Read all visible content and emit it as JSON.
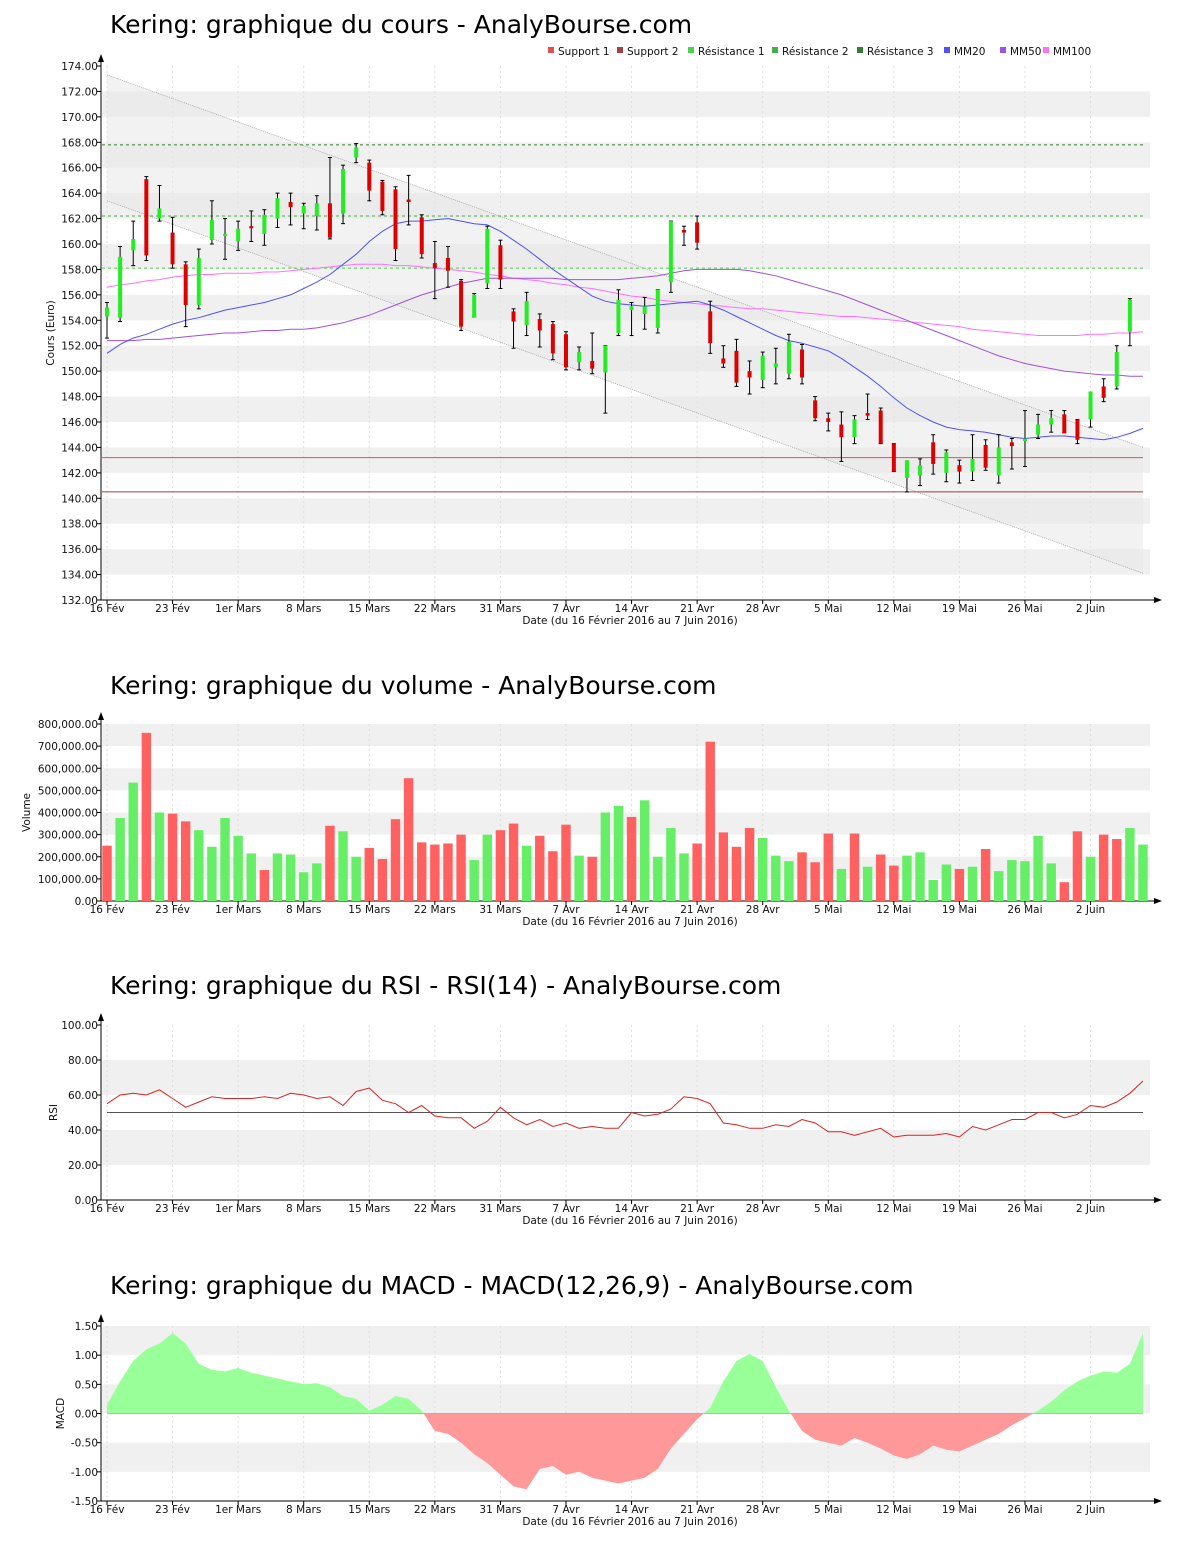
{
  "charts": {
    "price": {
      "title": "Kering: graphique du cours - AnalyBourse.com",
      "ylabel": "Cours (Euro)"
    },
    "volume": {
      "title": "Kering: graphique du volume - AnalyBourse.com",
      "ylabel": "Volume"
    },
    "rsi": {
      "title": "Kering: graphique du RSI - RSI(14) - AnalyBourse.com",
      "ylabel": "RSI"
    },
    "macd": {
      "title": "Kering: graphique du MACD - MACD(12,26,9) - AnalyBourse.com",
      "ylabel": "MACD"
    }
  },
  "xaxis": {
    "label": "Date (du 16 Février 2016 au 7 Juin 2016)",
    "ticks": [
      {
        "label": "16 Fév",
        "i": 0
      },
      {
        "label": "23 Fév",
        "i": 5
      },
      {
        "label": "1er Mars",
        "i": 10
      },
      {
        "label": "8 Mars",
        "i": 15
      },
      {
        "label": "15 Mars",
        "i": 20
      },
      {
        "label": "22 Mars",
        "i": 25
      },
      {
        "label": "31 Mars",
        "i": 30
      },
      {
        "label": "7 Avr",
        "i": 35
      },
      {
        "label": "14 Avr",
        "i": 40
      },
      {
        "label": "21 Avr",
        "i": 45
      },
      {
        "label": "28 Avr",
        "i": 50
      },
      {
        "label": "5 Mai",
        "i": 55
      },
      {
        "label": "12 Mai",
        "i": 60
      },
      {
        "label": "19 Mai",
        "i": 65
      },
      {
        "label": "26 Mai",
        "i": 70
      },
      {
        "label": "2 Juin",
        "i": 75
      }
    ]
  },
  "legend": [
    {
      "label": "Support 1",
      "color": "#e05050"
    },
    {
      "label": "Support 2",
      "color": "#a04040"
    },
    {
      "label": "Résistance 1",
      "color": "#50d050"
    },
    {
      "label": "Résistance 2",
      "color": "#40b040"
    },
    {
      "label": "Résistance 3",
      "color": "#308030"
    },
    {
      "label": "MM20",
      "color": "#5050ff"
    },
    {
      "label": "MM50",
      "color": "#a050e0"
    },
    {
      "label": "MM100",
      "color": "#ff70ff"
    }
  ],
  "colors": {
    "up": "#22ee22",
    "down": "#dd0000",
    "vol_up": "#66ee66",
    "vol_down": "#ff6060",
    "macd_pos": "#99ff99",
    "macd_neg": "#ff9999",
    "rsi": "#dd2222"
  },
  "chart_data": [
    {
      "type": "candlestick",
      "ylim": [
        132,
        174
      ],
      "yticks": [
        "132.00",
        "134.00",
        "136.00",
        "138.00",
        "140.00",
        "142.00",
        "144.00",
        "146.00",
        "148.00",
        "150.00",
        "152.00",
        "154.00",
        "156.00",
        "158.00",
        "160.00",
        "162.00",
        "164.00",
        "166.00",
        "168.00",
        "170.00",
        "172.00",
        "174.00"
      ],
      "support": [
        143.2,
        140.5
      ],
      "resistance": [
        158.1,
        162.2,
        167.8
      ],
      "ohlc": [
        [
          154.3,
          155.4,
          152.6,
          155.0
        ],
        [
          154.2,
          159.8,
          153.9,
          159.0
        ],
        [
          159.5,
          161.8,
          158.3,
          160.4
        ],
        [
          165.1,
          165.3,
          158.7,
          159.1
        ],
        [
          162.0,
          164.6,
          161.8,
          162.8
        ],
        [
          160.9,
          162.1,
          158.1,
          158.4
        ],
        [
          158.4,
          158.6,
          153.5,
          155.2
        ],
        [
          155.2,
          159.6,
          154.9,
          158.9
        ],
        [
          160.3,
          163.4,
          160.0,
          161.9
        ],
        [
          160.7,
          162.0,
          158.8,
          160.8
        ],
        [
          160.2,
          161.8,
          159.5,
          161.2
        ],
        [
          161.4,
          162.6,
          160.2,
          161.3
        ],
        [
          160.8,
          162.7,
          159.9,
          162.3
        ],
        [
          162.0,
          164.0,
          161.3,
          163.6
        ],
        [
          163.3,
          164.0,
          161.5,
          162.9
        ],
        [
          162.4,
          163.2,
          161.2,
          163.0
        ],
        [
          162.2,
          163.8,
          161.1,
          163.2
        ],
        [
          163.2,
          166.8,
          160.4,
          160.5
        ],
        [
          162.4,
          166.2,
          161.6,
          165.9
        ],
        [
          166.8,
          167.9,
          166.4,
          167.6
        ],
        [
          166.4,
          166.6,
          163.4,
          164.2
        ],
        [
          164.9,
          165.0,
          162.3,
          162.6
        ],
        [
          164.3,
          164.5,
          158.7,
          159.6
        ],
        [
          163.5,
          165.4,
          161.5,
          163.3
        ],
        [
          162.1,
          162.3,
          158.9,
          159.2
        ],
        [
          158.5,
          160.2,
          155.7,
          158.1
        ],
        [
          158.9,
          159.8,
          156.6,
          157.9
        ],
        [
          157.1,
          157.2,
          153.2,
          153.5
        ],
        [
          154.2,
          156.1,
          154.3,
          156.0
        ],
        [
          156.9,
          161.4,
          156.5,
          161.2
        ],
        [
          159.9,
          160.3,
          156.5,
          157.2
        ],
        [
          154.7,
          154.9,
          151.8,
          153.9
        ],
        [
          153.6,
          156.2,
          152.8,
          155.5
        ],
        [
          154.1,
          154.5,
          151.9,
          153.2
        ],
        [
          153.7,
          153.9,
          150.9,
          151.4
        ],
        [
          152.9,
          153.1,
          150.1,
          150.3
        ],
        [
          150.7,
          151.9,
          150.1,
          151.5
        ],
        [
          150.8,
          153.0,
          149.8,
          150.2
        ],
        [
          149.9,
          152.0,
          146.7,
          152.0
        ],
        [
          153.0,
          156.4,
          152.8,
          155.6
        ],
        [
          154.8,
          155.4,
          152.8,
          155.1
        ],
        [
          154.5,
          155.8,
          153.3,
          155.1
        ],
        [
          153.4,
          156.4,
          153.0,
          156.4
        ],
        [
          157.0,
          161.8,
          156.2,
          161.8
        ],
        [
          161.1,
          161.4,
          159.9,
          160.9
        ],
        [
          161.7,
          162.2,
          159.6,
          160.1
        ],
        [
          154.7,
          155.5,
          151.4,
          152.2
        ],
        [
          151.0,
          152.0,
          150.3,
          150.6
        ],
        [
          151.6,
          152.5,
          148.8,
          149.1
        ],
        [
          150.0,
          150.8,
          148.2,
          149.5
        ],
        [
          149.3,
          151.5,
          148.7,
          151.2
        ],
        [
          150.3,
          151.8,
          149.0,
          150.6
        ],
        [
          149.8,
          152.9,
          149.4,
          152.3
        ],
        [
          151.7,
          152.1,
          149.0,
          149.5
        ],
        [
          147.7,
          148.0,
          146.1,
          146.3
        ],
        [
          146.3,
          146.7,
          145.3,
          146.0
        ],
        [
          145.8,
          146.8,
          142.9,
          144.8
        ],
        [
          144.8,
          146.5,
          144.3,
          146.2
        ],
        [
          146.7,
          148.2,
          146.2,
          146.5
        ],
        [
          146.9,
          147.1,
          144.3,
          144.3
        ],
        [
          144.3,
          144.3,
          142.1,
          142.1
        ],
        [
          141.6,
          142.6,
          140.5,
          143.0
        ],
        [
          141.8,
          143.1,
          141.0,
          142.6
        ],
        [
          144.4,
          145.0,
          141.9,
          142.7
        ],
        [
          142.0,
          143.8,
          141.3,
          143.6
        ],
        [
          142.6,
          143.0,
          141.2,
          142.1
        ],
        [
          142.1,
          145.0,
          141.4,
          143.1
        ],
        [
          144.2,
          144.6,
          142.2,
          142.4
        ],
        [
          141.8,
          145.0,
          141.2,
          144.0
        ],
        [
          144.4,
          144.7,
          142.3,
          144.1
        ],
        [
          144.5,
          146.9,
          142.5,
          144.7
        ],
        [
          145.0,
          146.6,
          144.7,
          145.8
        ],
        [
          145.8,
          146.9,
          145.2,
          146.3
        ],
        [
          146.6,
          146.9,
          145.2,
          145.1
        ],
        [
          146.2,
          146.2,
          144.3,
          144.6
        ],
        [
          146.2,
          148.3,
          145.6,
          148.4
        ],
        [
          148.8,
          149.4,
          147.6,
          147.9
        ],
        [
          148.8,
          152.0,
          148.6,
          151.5
        ],
        [
          153.1,
          155.7,
          152.0,
          155.6
        ]
      ],
      "mm20": [
        151.4,
        152.1,
        152.6,
        152.9,
        153.3,
        153.7,
        154.0,
        154.2,
        154.5,
        154.8,
        155.0,
        155.2,
        155.4,
        155.7,
        156.0,
        156.5,
        157.0,
        157.6,
        158.4,
        159.2,
        160.2,
        161.0,
        161.6,
        161.8,
        161.8,
        161.9,
        162.0,
        161.8,
        161.6,
        161.5,
        161.0,
        160.3,
        159.6,
        158.8,
        158.0,
        157.3,
        156.6,
        155.9,
        155.5,
        155.3,
        155.2,
        155.1,
        155.2,
        155.3,
        155.4,
        155.5,
        155.2,
        154.8,
        154.3,
        153.8,
        153.3,
        152.8,
        152.4,
        152.2,
        151.9,
        151.6,
        151.0,
        150.3,
        149.6,
        148.8,
        147.9,
        147.1,
        146.5,
        146.0,
        145.6,
        145.4,
        145.3,
        145.2,
        145.0,
        144.8,
        144.7,
        144.8,
        144.9,
        144.9,
        144.8,
        144.7,
        144.6,
        144.8,
        145.1,
        145.5
      ],
      "mm50": [
        152.4,
        152.4,
        152.4,
        152.5,
        152.5,
        152.6,
        152.7,
        152.8,
        152.9,
        153.0,
        153.0,
        153.1,
        153.2,
        153.2,
        153.3,
        153.3,
        153.4,
        153.6,
        153.8,
        154.1,
        154.4,
        154.8,
        155.2,
        155.6,
        156.0,
        156.3,
        156.6,
        156.9,
        157.1,
        157.3,
        157.3,
        157.3,
        157.3,
        157.3,
        157.3,
        157.2,
        157.2,
        157.2,
        157.2,
        157.2,
        157.3,
        157.4,
        157.5,
        157.7,
        157.9,
        158.0,
        158.0,
        158.0,
        158.0,
        157.9,
        157.7,
        157.5,
        157.2,
        156.9,
        156.6,
        156.3,
        156.0,
        155.6,
        155.2,
        154.8,
        154.4,
        154.0,
        153.6,
        153.2,
        152.8,
        152.4,
        152.0,
        151.6,
        151.2,
        150.9,
        150.6,
        150.4,
        150.2,
        150.0,
        149.9,
        149.8,
        149.7,
        149.7,
        149.6,
        149.6
      ],
      "mm100": [
        156.6,
        156.8,
        156.9,
        157.1,
        157.2,
        157.4,
        157.5,
        157.6,
        157.6,
        157.7,
        157.7,
        157.7,
        157.8,
        157.8,
        157.9,
        158.0,
        158.1,
        158.2,
        158.3,
        158.4,
        158.4,
        158.4,
        158.3,
        158.3,
        158.2,
        158.1,
        158.0,
        157.9,
        157.8,
        157.6,
        157.5,
        157.3,
        157.2,
        157.1,
        156.9,
        156.8,
        156.6,
        156.5,
        156.3,
        156.1,
        155.9,
        155.8,
        155.6,
        155.5,
        155.4,
        155.3,
        155.2,
        155.1,
        155.0,
        154.9,
        154.9,
        154.8,
        154.7,
        154.6,
        154.5,
        154.4,
        154.3,
        154.3,
        154.2,
        154.1,
        154.0,
        153.9,
        153.8,
        153.7,
        153.6,
        153.5,
        153.3,
        153.2,
        153.1,
        153.0,
        152.9,
        152.8,
        152.8,
        152.8,
        152.8,
        152.9,
        152.9,
        153.0,
        153.0,
        153.1
      ],
      "channel": {
        "upper_start": 173.3,
        "upper_end": 144.0,
        "lower_start": 163.4,
        "lower_end": 134.1
      }
    },
    {
      "type": "bar",
      "ylim": [
        0,
        800000
      ],
      "yticks": [
        "0.00",
        "100,000.00",
        "200,000.00",
        "300,000.00",
        "400,000.00",
        "500,000.00",
        "600,000.00",
        "700,000.00",
        "800,000.00"
      ],
      "values": [
        250000,
        375000,
        535000,
        760000,
        400000,
        395000,
        360000,
        320000,
        245000,
        375000,
        295000,
        215000,
        140000,
        215000,
        210000,
        130000,
        170000,
        340000,
        315000,
        200000,
        240000,
        190000,
        370000,
        555000,
        265000,
        255000,
        260000,
        300000,
        185000,
        300000,
        320000,
        350000,
        250000,
        295000,
        225000,
        345000,
        205000,
        200000,
        400000,
        430000,
        380000,
        455000,
        200000,
        330000,
        215000,
        260000,
        720000,
        310000,
        245000,
        330000,
        285000,
        205000,
        180000,
        220000,
        175000,
        305000,
        145000,
        305000,
        155000,
        210000,
        160000,
        205000,
        220000,
        95000,
        165000,
        145000,
        155000,
        235000,
        135000,
        185000,
        180000,
        295000,
        170000,
        85000,
        315000,
        200000,
        300000,
        280000,
        330000,
        255000
      ],
      "up": [
        false,
        true,
        true,
        false,
        true,
        false,
        false,
        true,
        true,
        true,
        true,
        true,
        false,
        true,
        true,
        true,
        true,
        false,
        true,
        true,
        false,
        false,
        false,
        false,
        false,
        false,
        false,
        false,
        true,
        true,
        false,
        false,
        true,
        false,
        false,
        false,
        true,
        false,
        true,
        true,
        false,
        true,
        true,
        true,
        true,
        false,
        false,
        false,
        false,
        false,
        true,
        true,
        true,
        false,
        false,
        false,
        true,
        false,
        true,
        false,
        false,
        true,
        true,
        true,
        true,
        false,
        true,
        false,
        true,
        true,
        true,
        true,
        true,
        false,
        false,
        true,
        false,
        false,
        true,
        true
      ]
    },
    {
      "type": "line",
      "ylim": [
        0,
        100
      ],
      "yticks": [
        "0.00",
        "20.00",
        "40.00",
        "60.00",
        "80.00",
        "100.00"
      ],
      "reference": 50,
      "values": [
        55,
        60,
        61,
        60,
        63,
        58,
        53,
        56,
        59,
        58,
        58,
        58,
        59,
        58,
        61,
        60,
        58,
        59,
        54,
        62,
        64,
        57,
        55,
        50,
        54,
        48,
        47,
        47,
        41,
        45,
        53,
        47,
        43,
        46,
        42,
        44,
        41,
        42,
        41,
        41,
        50,
        48,
        49,
        52,
        59,
        58,
        55,
        44,
        43,
        41,
        41,
        43,
        42,
        46,
        44,
        39,
        39,
        37,
        39,
        41,
        36,
        37,
        37,
        37,
        38,
        36,
        42,
        40,
        43,
        46,
        46,
        50,
        50,
        47,
        49,
        54,
        53,
        56,
        61,
        68
      ]
    },
    {
      "type": "area",
      "ylim": [
        -1.5,
        1.5
      ],
      "yticks": [
        "-1.50",
        "-1.00",
        "-0.50",
        "0.00",
        "0.50",
        "1.00",
        "1.50"
      ],
      "values": [
        0.15,
        0.55,
        0.9,
        1.1,
        1.2,
        1.38,
        1.2,
        0.85,
        0.75,
        0.72,
        0.78,
        0.7,
        0.65,
        0.6,
        0.55,
        0.5,
        0.52,
        0.45,
        0.3,
        0.25,
        0.05,
        0.15,
        0.3,
        0.25,
        0.05,
        -0.3,
        -0.35,
        -0.5,
        -0.7,
        -0.85,
        -1.05,
        -1.25,
        -1.3,
        -0.95,
        -0.9,
        -1.05,
        -1.0,
        -1.1,
        -1.15,
        -1.2,
        -1.15,
        -1.1,
        -0.95,
        -0.6,
        -0.35,
        -0.1,
        0.1,
        0.55,
        0.9,
        1.02,
        0.9,
        0.45,
        0.05,
        -0.3,
        -0.45,
        -0.5,
        -0.55,
        -0.42,
        -0.5,
        -0.6,
        -0.72,
        -0.78,
        -0.7,
        -0.55,
        -0.62,
        -0.65,
        -0.55,
        -0.45,
        -0.35,
        -0.2,
        -0.08,
        0.05,
        0.2,
        0.4,
        0.55,
        0.65,
        0.72,
        0.7,
        0.85,
        1.38
      ]
    }
  ]
}
